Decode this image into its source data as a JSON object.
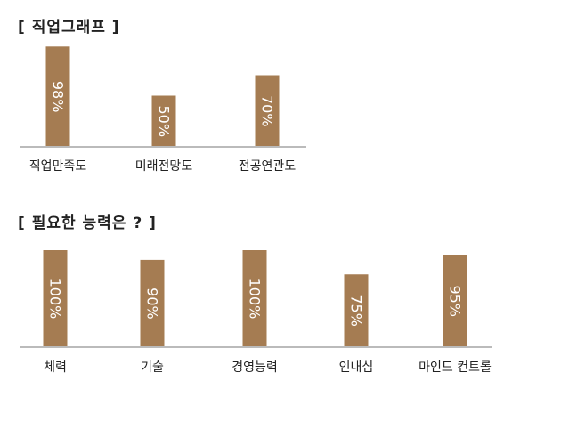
{
  "chart_data": [
    {
      "type": "bar",
      "title": "[ 직업그래프 ]",
      "categories": [
        "직업만족도",
        "미래전망도",
        "전공연관도"
      ],
      "values": [
        98,
        50,
        70
      ],
      "value_labels": [
        "98%",
        "50%",
        "70%"
      ],
      "ylim": [
        0,
        100
      ],
      "grid": false,
      "bar_color": "#a57c52",
      "axis_color": "#bbbbbb"
    },
    {
      "type": "bar",
      "title": "[ 필요한 능력은 ? ]",
      "categories": [
        "체력",
        "기술",
        "경영능력",
        "인내심",
        "마인드 컨트롤"
      ],
      "values": [
        100,
        90,
        100,
        75,
        95
      ],
      "value_labels": [
        "100%",
        "90%",
        "100%",
        "75%",
        "95%"
      ],
      "ylim": [
        0,
        100
      ],
      "grid": false,
      "bar_color": "#a57c52",
      "axis_color": "#bbbbbb"
    }
  ]
}
